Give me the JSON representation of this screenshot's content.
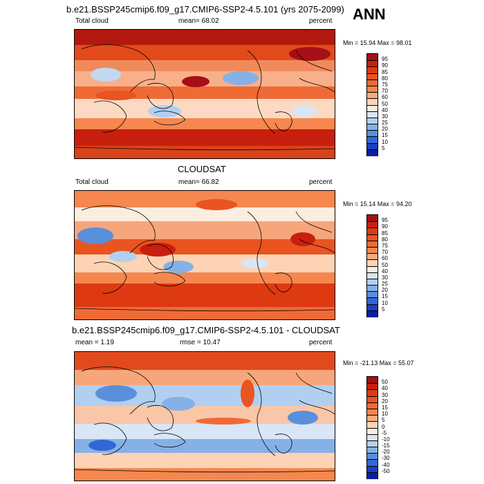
{
  "season": "ANN",
  "panels": [
    {
      "title": "b.e21.BSSP245cmip6.f09_g17.CMIP6-SSP2-4.5.101 (yrs 2075-2099)",
      "field": "Total cloud",
      "stat1": "mean=  68.02",
      "stat2": "",
      "units": "percent",
      "minmax": "Min = 15.94 Max = 98.01",
      "ticks": [
        "95",
        "90",
        "85",
        "80",
        "75",
        "70",
        "60",
        "50",
        "40",
        "30",
        "25",
        "20",
        "15",
        "10",
        "5"
      ],
      "colors": [
        "#a50f15",
        "#c81f0e",
        "#dd3a12",
        "#e95421",
        "#f06a36",
        "#f5874f",
        "#f9ab7f",
        "#fcd3b5",
        "#fbeee0",
        "#d8e6f6",
        "#b1cff0",
        "#86b1e6",
        "#5a8fdb",
        "#3366d6",
        "#1a3fc3",
        "#0b1f9c"
      ],
      "map_base": "#e8582a"
    },
    {
      "title": "CLOUDSAT",
      "field": "Total cloud",
      "stat1": "mean=  66.82",
      "stat2": "",
      "units": "percent",
      "minmax": "Min = 15.14 Max = 94.20",
      "ticks": [
        "95",
        "90",
        "85",
        "80",
        "75",
        "70",
        "60",
        "50",
        "40",
        "30",
        "25",
        "20",
        "15",
        "10",
        "5"
      ],
      "colors": [
        "#a50f15",
        "#c81f0e",
        "#dd3a12",
        "#e95421",
        "#f06a36",
        "#f5874f",
        "#f9ab7f",
        "#fcd3b5",
        "#fbeee0",
        "#d8e6f6",
        "#b1cff0",
        "#86b1e6",
        "#5a8fdb",
        "#3366d6",
        "#1a3fc3",
        "#0b1f9c"
      ],
      "map_base": "#f39a73"
    },
    {
      "title": "b.e21.BSSP245cmip6.f09_g17.CMIP6-SSP2-4.5.101 - CLOUDSAT",
      "field": "",
      "stat1": "mean =   1.19",
      "stat2": "rmse =  10.47",
      "units": "percent",
      "minmax": "Min = -21.13 Max = 55.07",
      "ticks": [
        "50",
        "40",
        "30",
        "20",
        "15",
        "10",
        "5",
        "0",
        "-5",
        "-10",
        "-15",
        "-20",
        "-30",
        "-40",
        "-50"
      ],
      "colors": [
        "#a50f15",
        "#c81f0e",
        "#dd3a12",
        "#e95421",
        "#f06a36",
        "#f5874f",
        "#f9ab7f",
        "#fcd3b5",
        "#fbeee0",
        "#d8e6f6",
        "#b1cff0",
        "#86b1e6",
        "#5a8fdb",
        "#3366d6",
        "#1a3fc3",
        "#0b1f9c"
      ],
      "map_base": "#f7c6a9"
    }
  ]
}
